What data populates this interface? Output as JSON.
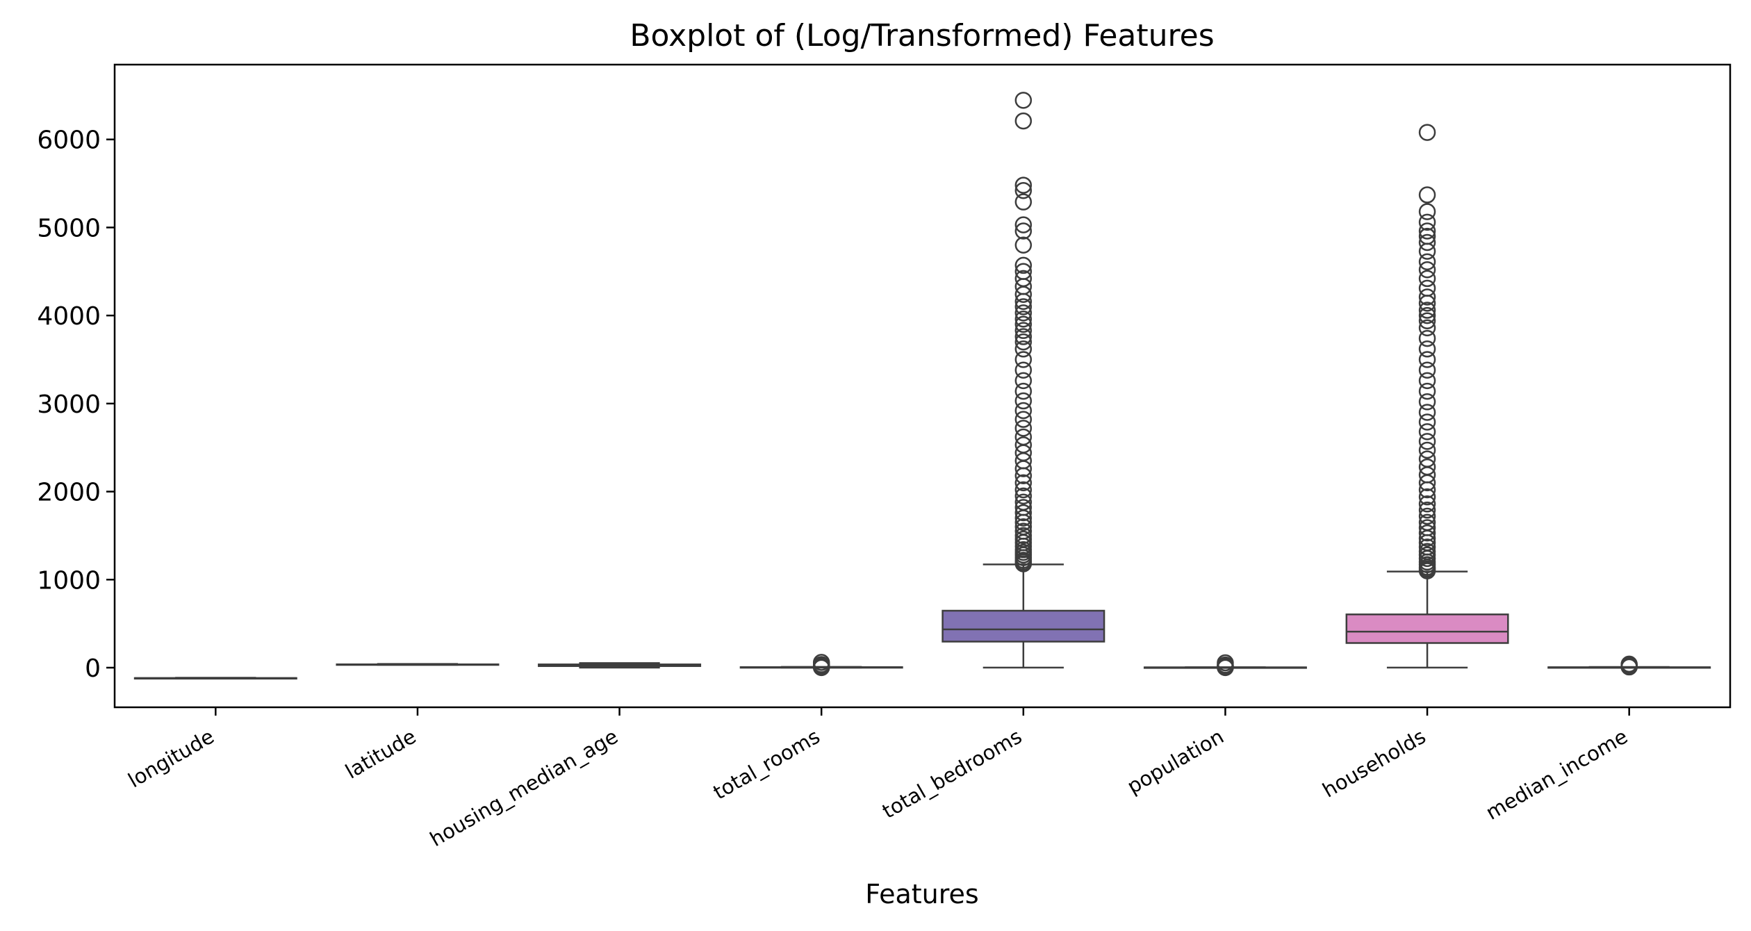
{
  "chart_data": {
    "type": "boxplot",
    "title": "Boxplot of (Log/Transformed) Features",
    "xlabel": "Features",
    "ylabel": "",
    "ylim": [
      -450,
      6850
    ],
    "yticks": [
      0,
      1000,
      2000,
      3000,
      4000,
      5000,
      6000
    ],
    "ytick_labels": [
      "0",
      "1000",
      "2000",
      "3000",
      "4000",
      "5000",
      "6000"
    ],
    "grid": false,
    "categories": [
      "longitude",
      "latitude",
      "housing_median_age",
      "total_rooms",
      "total_bedrooms",
      "population",
      "households",
      "median_income"
    ],
    "colors": [
      "#4c72b0",
      "#dd8452",
      "#55a868",
      "#c44e52",
      "#8172b3",
      "#937860",
      "#da8bc3",
      "#8c8c8c"
    ],
    "line_color": "#3d3d3d",
    "boxes": [
      {
        "name": "longitude",
        "whislo": -124.3,
        "q1": -121.8,
        "med": -118.5,
        "q3": -118.0,
        "whishi": -114.3,
        "fliers": []
      },
      {
        "name": "latitude",
        "whislo": 32.5,
        "q1": 33.9,
        "med": 34.3,
        "q3": 37.7,
        "whishi": 42.0,
        "fliers": []
      },
      {
        "name": "housing_median_age",
        "whislo": 1,
        "q1": 18,
        "med": 29,
        "q3": 37,
        "whishi": 52,
        "fliers": []
      },
      {
        "name": "total_rooms",
        "whislo": 1.0,
        "q1": 4.4,
        "med": 5.2,
        "q3": 6.0,
        "whishi": 8.6,
        "fliers": [
          0.8,
          10,
          15,
          25,
          35,
          60
        ]
      },
      {
        "name": "total_bedrooms",
        "whislo": 1,
        "q1": 296,
        "med": 435,
        "q3": 647,
        "whishi": 1173,
        "fliers": [
          1180,
          1200,
          1220,
          1250,
          1280,
          1310,
          1340,
          1380,
          1420,
          1460,
          1500,
          1550,
          1600,
          1650,
          1700,
          1760,
          1820,
          1880,
          1950,
          2020,
          2100,
          2180,
          2260,
          2350,
          2440,
          2530,
          2620,
          2720,
          2820,
          2920,
          3030,
          3140,
          3260,
          3380,
          3500,
          3620,
          3700,
          3760,
          3830,
          3900,
          3960,
          4030,
          4100,
          4160,
          4240,
          4330,
          4420,
          4500,
          4570,
          4800,
          4960,
          5030,
          5290,
          5420,
          5480,
          6210,
          6445
        ]
      },
      {
        "name": "population",
        "whislo": 1.0,
        "q1": 2.4,
        "med": 2.8,
        "q3": 3.3,
        "whishi": 4.7,
        "fliers": [
          0.7,
          6,
          12,
          20,
          30,
          55
        ]
      },
      {
        "name": "households",
        "whislo": 1,
        "q1": 280,
        "med": 409,
        "q3": 605,
        "whishi": 1092,
        "fliers": [
          1100,
          1120,
          1140,
          1170,
          1200,
          1240,
          1280,
          1320,
          1370,
          1420,
          1470,
          1530,
          1590,
          1650,
          1720,
          1790,
          1860,
          1940,
          2020,
          2100,
          2190,
          2280,
          2370,
          2470,
          2570,
          2680,
          2790,
          2900,
          3020,
          3140,
          3260,
          3380,
          3500,
          3620,
          3740,
          3860,
          3940,
          4000,
          4060,
          4140,
          4210,
          4310,
          4420,
          4520,
          4610,
          4730,
          4830,
          4900,
          4960,
          5060,
          5180,
          5370,
          6080
        ]
      },
      {
        "name": "median_income",
        "whislo": 0.5,
        "q1": 2.6,
        "med": 3.5,
        "q3": 4.7,
        "whishi": 8.0,
        "fliers": [
          8.5,
          10,
          12,
          15,
          25,
          40
        ]
      }
    ]
  }
}
